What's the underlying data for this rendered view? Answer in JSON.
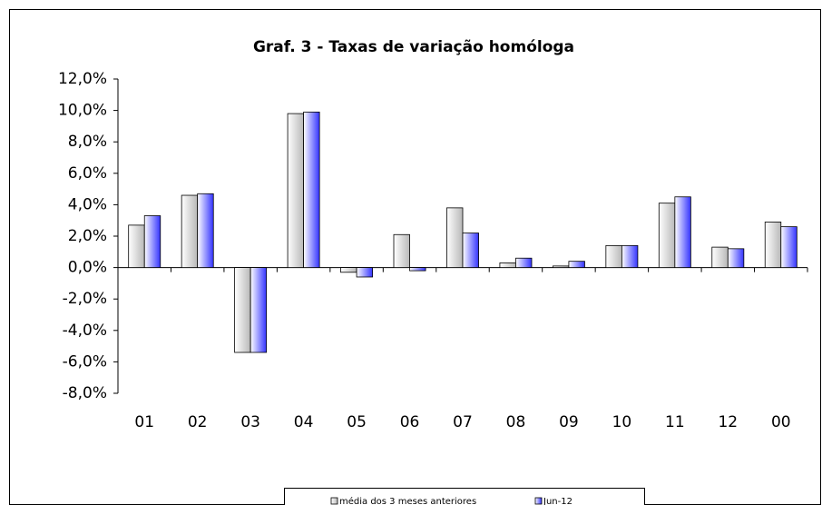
{
  "chart_data": {
    "type": "bar",
    "title": "Graf. 3 - Taxas de variação homóloga",
    "categories": [
      "01",
      "02",
      "03",
      "04",
      "05",
      "06",
      "07",
      "08",
      "09",
      "10",
      "11",
      "12",
      "00"
    ],
    "series": [
      {
        "name": "média dos 3 meses anteriores",
        "color": "#b8b8b8",
        "values": [
          2.7,
          4.6,
          -5.4,
          9.8,
          -0.3,
          2.1,
          3.8,
          0.3,
          0.1,
          1.4,
          4.1,
          1.3,
          2.9
        ]
      },
      {
        "name": "Jun-12",
        "color": "#3333ff",
        "values": [
          3.3,
          4.7,
          -5.4,
          9.9,
          -0.6,
          -0.2,
          2.2,
          0.6,
          0.4,
          1.4,
          4.5,
          1.2,
          2.6
        ]
      }
    ],
    "ylim": [
      -8,
      12
    ],
    "yticks": [
      {
        "value": -8,
        "label": "-8,0%"
      },
      {
        "value": -6,
        "label": "-6,0%"
      },
      {
        "value": -4,
        "label": "-4,0%"
      },
      {
        "value": -2,
        "label": "-2,0%"
      },
      {
        "value": 0,
        "label": "0,0%"
      },
      {
        "value": 2,
        "label": "2,0%"
      },
      {
        "value": 4,
        "label": "4,0%"
      },
      {
        "value": 6,
        "label": "6,0%"
      },
      {
        "value": 8,
        "label": "8,0%"
      },
      {
        "value": 10,
        "label": "10,0%"
      },
      {
        "value": 12,
        "label": "12,0%"
      }
    ],
    "grid": false,
    "legend": "bottom"
  }
}
